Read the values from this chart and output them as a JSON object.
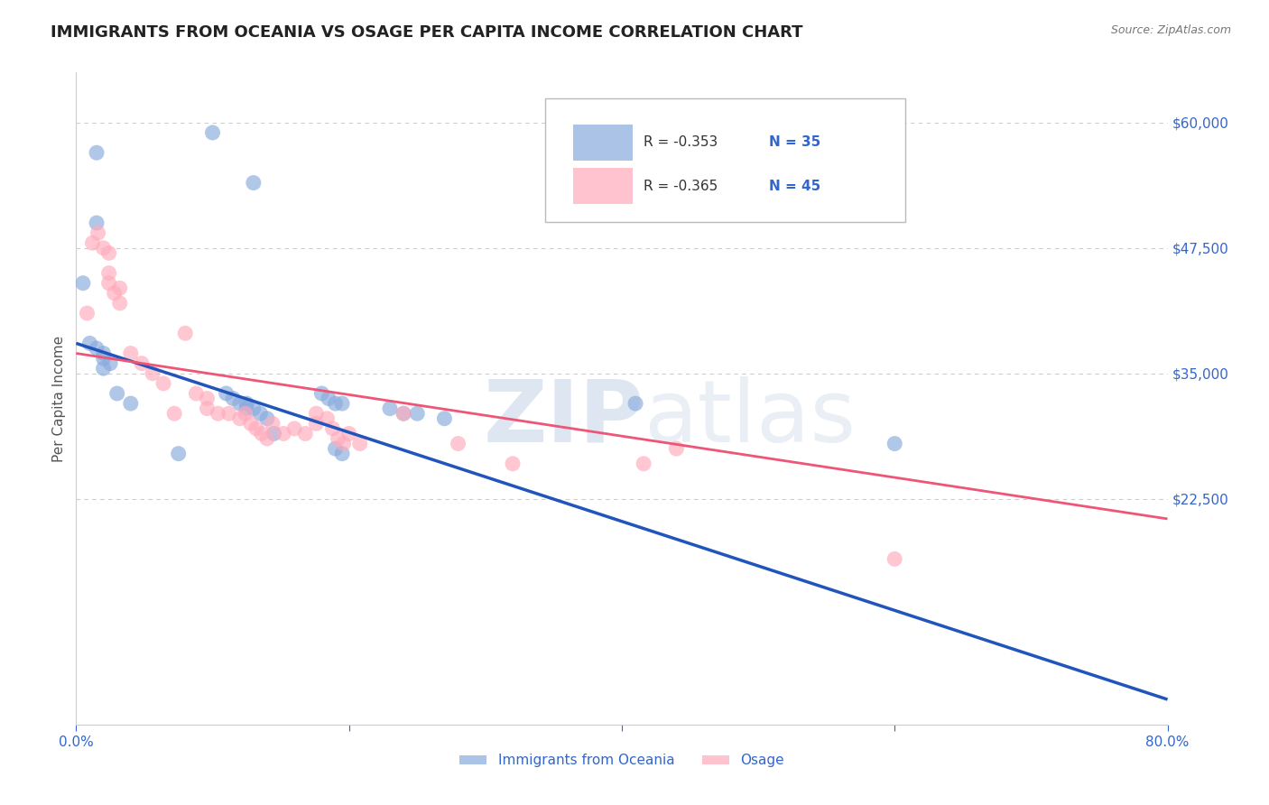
{
  "title": "IMMIGRANTS FROM OCEANIA VS OSAGE PER CAPITA INCOME CORRELATION CHART",
  "source": "Source: ZipAtlas.com",
  "ylabel": "Per Capita Income",
  "xlim": [
    0.0,
    0.8
  ],
  "ylim": [
    0,
    65000
  ],
  "yticks": [
    0,
    22500,
    35000,
    47500,
    60000
  ],
  "ytick_labels": [
    "",
    "$22,500",
    "$35,000",
    "$47,500",
    "$60,000"
  ],
  "xticks": [
    0.0,
    0.2,
    0.4,
    0.6,
    0.8
  ],
  "xtick_labels": [
    "0.0%",
    "",
    "",
    "",
    "80.0%"
  ],
  "grid_color": "#cccccc",
  "background_color": "#ffffff",
  "blue_color": "#88aadd",
  "pink_color": "#ffaabb",
  "blue_line_color": "#2255bb",
  "pink_line_color": "#ee5577",
  "legend_R_blue": "R = -0.353",
  "legend_N_blue": "N = 35",
  "legend_R_pink": "R = -0.365",
  "legend_N_pink": "N = 45",
  "legend_label_blue": "Immigrants from Oceania",
  "legend_label_pink": "Osage",
  "watermark_zip": "ZIP",
  "watermark_atlas": "atlas",
  "blue_scatter_x": [
    0.005,
    0.01,
    0.015,
    0.015,
    0.1,
    0.13,
    0.015,
    0.02,
    0.02,
    0.025,
    0.02,
    0.03,
    0.04,
    0.11,
    0.115,
    0.12,
    0.125,
    0.125,
    0.13,
    0.135,
    0.14,
    0.145,
    0.18,
    0.185,
    0.19,
    0.195,
    0.23,
    0.24,
    0.25,
    0.27,
    0.41,
    0.6,
    0.075,
    0.19,
    0.195
  ],
  "blue_scatter_y": [
    44000,
    38000,
    57000,
    50000,
    59000,
    54000,
    37500,
    37000,
    36500,
    36000,
    35500,
    33000,
    32000,
    33000,
    32500,
    32000,
    32000,
    31500,
    31500,
    31000,
    30500,
    29000,
    33000,
    32500,
    32000,
    32000,
    31500,
    31000,
    31000,
    30500,
    32000,
    28000,
    27000,
    27500,
    27000
  ],
  "pink_scatter_x": [
    0.008,
    0.012,
    0.016,
    0.02,
    0.024,
    0.024,
    0.024,
    0.028,
    0.032,
    0.032,
    0.04,
    0.048,
    0.056,
    0.064,
    0.072,
    0.08,
    0.088,
    0.096,
    0.096,
    0.104,
    0.112,
    0.12,
    0.124,
    0.128,
    0.132,
    0.136,
    0.14,
    0.144,
    0.152,
    0.16,
    0.168,
    0.176,
    0.176,
    0.184,
    0.188,
    0.192,
    0.196,
    0.2,
    0.208,
    0.24,
    0.28,
    0.32,
    0.416,
    0.44,
    0.6
  ],
  "pink_scatter_y": [
    41000,
    48000,
    49000,
    47500,
    47000,
    45000,
    44000,
    43000,
    43500,
    42000,
    37000,
    36000,
    35000,
    34000,
    31000,
    39000,
    33000,
    32500,
    31500,
    31000,
    31000,
    30500,
    31000,
    30000,
    29500,
    29000,
    28500,
    30000,
    29000,
    29500,
    29000,
    31000,
    30000,
    30500,
    29500,
    28500,
    28000,
    29000,
    28000,
    31000,
    28000,
    26000,
    26000,
    27500,
    16500
  ],
  "blue_line_x": [
    0.0,
    0.8
  ],
  "blue_line_y": [
    38000,
    2500
  ],
  "pink_line_x": [
    0.0,
    0.8
  ],
  "pink_line_y": [
    37000,
    20500
  ],
  "title_color": "#222222",
  "axis_color": "#3366cc",
  "title_fontsize": 13,
  "axis_label_fontsize": 11,
  "tick_fontsize": 11,
  "legend_text_color": "#333333",
  "legend_N_color": "#3366cc"
}
